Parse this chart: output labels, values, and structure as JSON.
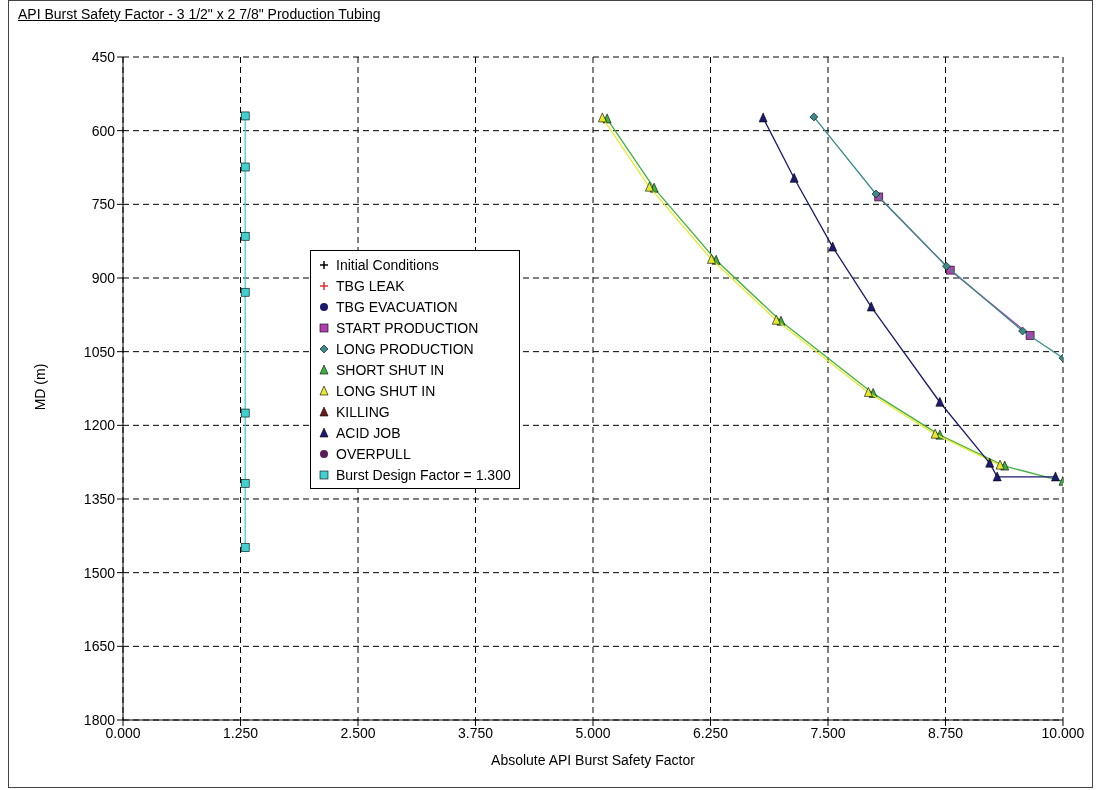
{
  "chart_data": {
    "type": "line",
    "title": "API Burst Safety Factor - 3 1/2\" x 2 7/8\" Production Tubing",
    "xlabel": "Absolute API Burst Safety Factor",
    "ylabel": "MD (m)",
    "xlim": [
      0,
      10
    ],
    "xticks": [
      {
        "value": 0,
        "label": "0.000"
      },
      {
        "value": 1.25,
        "label": "1.250"
      },
      {
        "value": 2.5,
        "label": "2.500"
      },
      {
        "value": 3.75,
        "label": "3.750"
      },
      {
        "value": 5,
        "label": "5.000"
      },
      {
        "value": 6.25,
        "label": "6.250"
      },
      {
        "value": 7.5,
        "label": "7.500"
      },
      {
        "value": 8.75,
        "label": "8.750"
      },
      {
        "value": 10,
        "label": "10.000"
      }
    ],
    "ylim": [
      1800,
      450
    ],
    "yticks": [
      450,
      600,
      750,
      900,
      1050,
      1200,
      1350,
      1500,
      1650,
      1800
    ],
    "grid": true,
    "legend": "left",
    "series": [
      {
        "name": "Initial Conditions",
        "color": "#000000",
        "marker": "cross"
      },
      {
        "name": "TBG LEAK",
        "color": "#e03030",
        "marker": "cross"
      },
      {
        "name": "TBG EVACUATION",
        "color": "#1a1a6e",
        "marker": "circle"
      },
      {
        "name": "START PRODUCTION",
        "color": "#b040b0",
        "marker": "square",
        "x": [
          8.04,
          8.8,
          9.65
        ],
        "values": [
          735,
          884,
          1017
        ]
      },
      {
        "name": "LONG PRODUCTION",
        "color": "#3a8a8a",
        "marker": "diamond",
        "x": [
          7.35,
          8.01,
          8.76,
          9.57,
          10
        ],
        "values": [
          572,
          729,
          876,
          1008,
          1063
        ]
      },
      {
        "name": "SHORT SHUT IN",
        "color": "#40b040",
        "marker": "triangle",
        "x": [
          5.15,
          5.65,
          6.31,
          7.0,
          7.98,
          8.69,
          9.38,
          10
        ],
        "values": [
          576,
          717,
          864,
          988,
          1135,
          1220,
          1283,
          1314
        ]
      },
      {
        "name": "LONG SHUT IN",
        "color": "#e8e830",
        "marker": "triangle",
        "x": [
          5.1,
          5.6,
          6.26,
          6.95,
          7.93,
          8.64,
          9.33
        ],
        "values": [
          574,
          715,
          862,
          986,
          1133,
          1218,
          1281
        ]
      },
      {
        "name": "KILLING",
        "color": "#6a1a1a",
        "marker": "triangle"
      },
      {
        "name": "ACID JOB",
        "color": "#1a1a6e",
        "marker": "triangle",
        "x": [
          6.81,
          7.14,
          7.55,
          7.96,
          8.69,
          9.22,
          9.3,
          9.92
        ],
        "values": [
          574,
          697,
          837,
          959,
          1153,
          1277,
          1305,
          1305
        ]
      },
      {
        "name": "OVERPULL",
        "color": "#5a1a5a",
        "marker": "circle"
      },
      {
        "name": "Burst Design Factor = 1.300",
        "color": "#40d0d0",
        "marker": "square",
        "x": [
          1.3,
          1.3,
          1.3,
          1.3,
          1.3,
          1.3,
          1.3
        ],
        "values": [
          570,
          674,
          815,
          929,
          1175,
          1318,
          1449
        ]
      }
    ]
  }
}
